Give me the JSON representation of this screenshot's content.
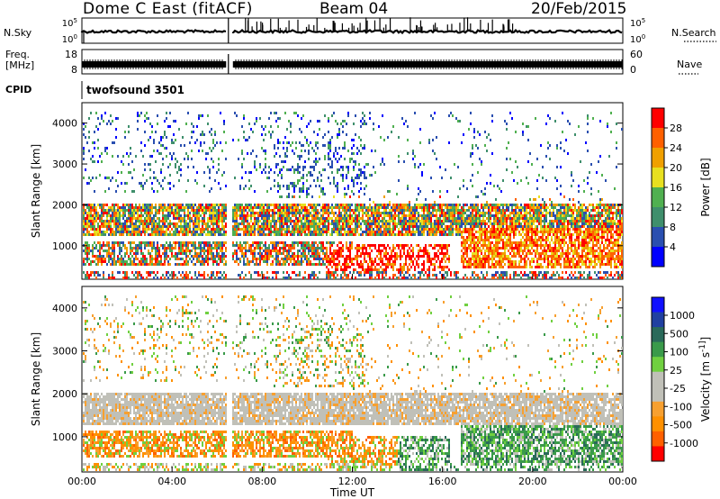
{
  "header": {
    "title": "Dome C East (fitACF)",
    "beam": "Beam 04",
    "date": "20/Feb/2015"
  },
  "top_panels": {
    "nsky_label": "N.Sky",
    "nsky_ticks": [
      "10^5",
      "10^0"
    ],
    "nsearch_label": "N.Search",
    "nsearch_ticks": [
      "10^5",
      "10^0"
    ],
    "freq_label_1": "Freq.",
    "freq_label_2": "[MHz]",
    "freq_ticks": [
      "18",
      "8"
    ],
    "nave_label": "Nave",
    "nave_ticks": [
      "60",
      "0"
    ],
    "cpid_label": "CPID",
    "cpid_value": "twofsound 3501"
  },
  "x_axis": {
    "label": "Time UT",
    "ticks": [
      "00:00",
      "04:00",
      "08:00",
      "12:00",
      "16:00",
      "20:00",
      "00:00"
    ]
  },
  "colors": {
    "power": [
      "#0000ff",
      "#2a4fb0",
      "#3f8f6c",
      "#50b050",
      "#e8e020",
      "#f0a000",
      "#ff6000",
      "#ff0000"
    ],
    "velocity": [
      "#ff0000",
      "#ff6000",
      "#ff9000",
      "#f7a030",
      "#c0c0b8",
      "#c0c0b8",
      "#70d040",
      "#3a9a4a",
      "#2a6a5a",
      "#2040a0",
      "#1010ff"
    ]
  },
  "chart_data": [
    {
      "type": "heatmap",
      "panel": "power",
      "ylabel": "Slant Range [km]",
      "yticks": [
        1000,
        2000,
        3000,
        4000
      ],
      "ylim": [
        180,
        4500
      ],
      "xlim": [
        0,
        24
      ],
      "colorbar_label": "Power [dB]",
      "colorbar_ticks": [
        "4",
        "8",
        "12",
        "16",
        "20",
        "24",
        "28"
      ],
      "data_gap_hours": [
        6.4,
        6.6
      ],
      "bands": [
        {
          "range_km": [
            1300,
            2000
          ],
          "hours": [
            0,
            24
          ],
          "typical_db": 20
        },
        {
          "range_km": [
            600,
            1100
          ],
          "hours": [
            0,
            12
          ],
          "typical_db": 24
        },
        {
          "range_km": [
            300,
            1000
          ],
          "hours": [
            11,
            16
          ],
          "typical_db": 28
        },
        {
          "range_km": [
            500,
            1400
          ],
          "hours": [
            17,
            24
          ],
          "typical_db": 26
        },
        {
          "range_km": [
            2400,
            4200
          ],
          "hours": [
            0,
            12
          ],
          "typical_db": 8
        }
      ]
    },
    {
      "type": "heatmap",
      "panel": "velocity",
      "ylabel": "Slant Range [km]",
      "yticks": [
        1000,
        2000,
        3000,
        4000
      ],
      "ylim": [
        180,
        4500
      ],
      "xlim": [
        0,
        24
      ],
      "colorbar_label": "Velocity [m s^-1]",
      "colorbar_ticks": [
        "1000",
        "500",
        "100",
        "25",
        "-25",
        "-100",
        "-500",
        "-1000"
      ],
      "data_gap_hours": [
        6.4,
        6.6
      ],
      "bands": [
        {
          "range_km": [
            1300,
            2000
          ],
          "hours": [
            0,
            24
          ],
          "typical_velocity": 0
        },
        {
          "range_km": [
            500,
            1200
          ],
          "hours": [
            1,
            14
          ],
          "typical_velocity": -300
        },
        {
          "range_km": [
            400,
            1600
          ],
          "hours": [
            14,
            24
          ],
          "typical_velocity": 200
        }
      ]
    }
  ]
}
